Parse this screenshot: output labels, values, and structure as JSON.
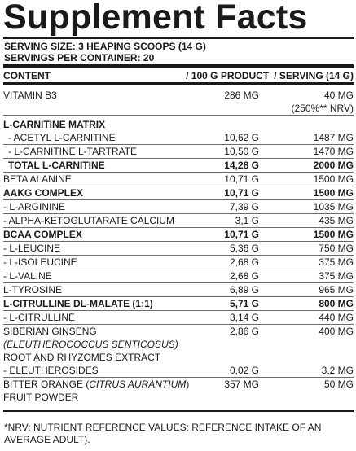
{
  "title": "Supplement Facts",
  "serving_size": "SERVING SIZE: 3 HEAPING SCOOPS (14 G)",
  "servings_per_container": "SERVINGS PER CONTAINER: 20",
  "columns": {
    "content": "CONTENT",
    "per_100g": "/ 100 G PRODUCT",
    "per_serving": "/ SERVING (14 G)"
  },
  "rows": [
    {
      "name": "VITAMIN B3",
      "v1": "286 MG",
      "v2": "40 MG",
      "v2b": "(250%** NRV)"
    },
    {
      "name": "L-CARNITINE MATRIX",
      "v1": "",
      "v2": ""
    },
    {
      "name": "- ACETYL L-CARNITINE",
      "v1": "10,62 G",
      "v2": "1487 MG"
    },
    {
      "name": "- L-CARNITINE L-TARTRATE",
      "v1": "10,50 G",
      "v2": "1470 MG"
    },
    {
      "name": "TOTAL L-CARNITINE",
      "v1": "14,28 G",
      "v2": "2000 MG"
    },
    {
      "name": "BETA ALANINE",
      "v1": "10,71 G",
      "v2": "1500 MG"
    },
    {
      "name": "AAKG COMPLEX",
      "v1": "10,71 G",
      "v2": "1500 MG"
    },
    {
      "name": "- L-ARGININE",
      "v1": "7,39 G",
      "v2": "1035 MG"
    },
    {
      "name": "- ALPHA-KETOGLUTARATE CALCIUM",
      "v1": "3,1 G",
      "v2": "435 MG"
    },
    {
      "name": "BCAA COMPLEX",
      "v1": "10,71 G",
      "v2": "1500 MG"
    },
    {
      "name": "- L-LEUCINE",
      "v1": "5,36 G",
      "v2": "750 MG"
    },
    {
      "name": "- L-ISOLEUCINE",
      "v1": "2,68 G",
      "v2": "375 MG"
    },
    {
      "name": "- L-VALINE",
      "v1": "2,68 G",
      "v2": "375 MG"
    },
    {
      "name": "L-TYROSINE",
      "v1": "6,89 G",
      "v2": "965 MG"
    },
    {
      "name": "L-CITRULLINE DL-MALATE (1:1)",
      "v1": "5,71 G",
      "v2": "800 MG"
    },
    {
      "name": "- L-CITRULLINE",
      "v1": "3,14 G",
      "v2": "440 MG"
    },
    {
      "name": "SIBERIAN GINSENG",
      "name2": "(ELEUTHEROCOCCUS SENTICOSUS)",
      "name3": "ROOT AND RHYZOMES EXTRACT",
      "v1": "2,86 G",
      "v2": "400 MG"
    },
    {
      "name": "- ELEUTHEROSIDES",
      "v1": "0,02 G",
      "v2": "3,2 MG"
    },
    {
      "name": "BITTER ORANGE (",
      "name_italic": "CITRUS AURANTIUM",
      "name_end": ")",
      "name2": "FRUIT POWDER",
      "v1": "357 MG",
      "v2": "50 MG"
    }
  ],
  "footnote": "*NRV: NUTRIENT REFERENCE VALUES: REFERENCE INTAKE OF AN AVERAGE ADULT)."
}
